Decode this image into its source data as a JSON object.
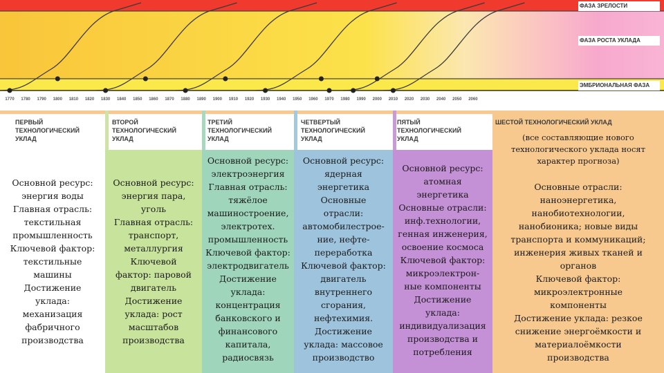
{
  "phases": {
    "maturity": "Фаза зрелости",
    "growth": "Фаза роста уклада",
    "embryonic": "Эмбриональная фаза"
  },
  "years": [
    "1770",
    "1780",
    "1790",
    "1800",
    "1810",
    "1820",
    "1830",
    "1840",
    "1850",
    "1860",
    "1870",
    "1880",
    "1890",
    "1900",
    "1910",
    "1920",
    "1930",
    "1940",
    "1950",
    "1960",
    "1970",
    "1980",
    "1990",
    "2000",
    "2010",
    "2020",
    "2030",
    "2040",
    "2050",
    "2060"
  ],
  "colors": {
    "red": "#f03a2e",
    "orange": "#f9b132",
    "yellow": "#fbe84a"
  },
  "stages": [
    {
      "header": "Первый\nтехнологический\nуклад",
      "text": "Основной ресурс:\nэнергия воды\nГлавная отрасль:\nтекстильная\nпромышленность\nКлючевой фактор:\nтекстильные\nмашины\nДостижение\nуклада:\nмеханизация\nфабричного\nпроизводства"
    },
    {
      "header": "Второй\nтехнологический\nуклад",
      "text": "Основной ресурс:\nэнергия пара,\nуголь\nГлавная отрасль:\nтранспорт,\nметаллургия\nКлючевой\nфактор: паровой\nдвигатель\nДостижение\nуклада: рост\nмасштабов\nпроизводства"
    },
    {
      "header": "Третий\nтехнологический\nуклад",
      "text": "Основной ресурс:\nэлектроэнергия\nГлавная отрасль:\nтяжёлое\nмашиностроение,\nэлектротех.\nпромышленность\nКлючевой фактор:\nэлектродвигатель\nДостижение\nуклада:\nконцентрация\nбанковского и\nфинансового\nкапитала,\nрадиосвязь"
    },
    {
      "header": "Четвертый\nтехнологический\nуклад",
      "text": "Основной ресурс:\nядерная\nэнергетика\nОсновные\nотрасли:\nавтомобилестрое-\nние, нефте-\nпереработка\nКлючевой фактор:\nдвигатель\nвнутреннего\nсгорания,\nнефтехимия.\nДостижение\nуклада: массовое\nпроизводство"
    },
    {
      "header": "Пятый\nтехнологический\nуклад",
      "text": "Основной ресурс:\nатомная\nэнергетика\nОсновные отрасли:\nинф.технологии,\nгенная инженерия,\nосвоение космоса\nКлючевой фактор:\nмикроэлектрон-\nные компоненты\nДостижение\nуклада:\nиндивидуализация\nпроизводства и\nпотребления"
    },
    {
      "header": "Шестой технологический уклад",
      "note": "(все составляющие нового\nтехнологического уклада носят\nхарактер прогноза)",
      "text": "Основные отрасли:\nнаноэнергетика,\nнанобиотехнологии,\nнанобионика; новые виды\nтранспорта и коммуникаций;\nинженерия живых тканей и\nорганов\nКлючевой фактор:\nмикроэлектронные\nкомпоненты\nДостижение уклада: резкое\nснижение энергоёмкости и\nматериалоёмкости\nпроизводства"
    }
  ]
}
